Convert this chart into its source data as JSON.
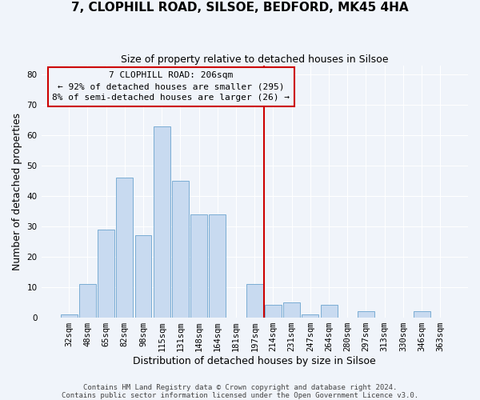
{
  "title": "7, CLOPHILL ROAD, SILSOE, BEDFORD, MK45 4HA",
  "subtitle": "Size of property relative to detached houses in Silsoe",
  "xlabel": "Distribution of detached houses by size in Silsoe",
  "ylabel": "Number of detached properties",
  "categories": [
    "32sqm",
    "48sqm",
    "65sqm",
    "82sqm",
    "98sqm",
    "115sqm",
    "131sqm",
    "148sqm",
    "164sqm",
    "181sqm",
    "197sqm",
    "214sqm",
    "231sqm",
    "247sqm",
    "264sqm",
    "280sqm",
    "297sqm",
    "313sqm",
    "330sqm",
    "346sqm",
    "363sqm"
  ],
  "values": [
    1,
    11,
    29,
    46,
    27,
    63,
    45,
    34,
    34,
    0,
    11,
    4,
    5,
    1,
    4,
    0,
    2,
    0,
    0,
    2,
    0
  ],
  "bar_color": "#c8daf0",
  "bar_edge_color": "#7aadd4",
  "vline_x": 10.5,
  "vline_color": "#cc0000",
  "annotation_title": "7 CLOPHILL ROAD: 206sqm",
  "annotation_line1": "← 92% of detached houses are smaller (295)",
  "annotation_line2": "8% of semi-detached houses are larger (26) →",
  "annotation_box_color": "#cc0000",
  "ylim": [
    0,
    83
  ],
  "yticks": [
    0,
    10,
    20,
    30,
    40,
    50,
    60,
    70,
    80
  ],
  "footer1": "Contains HM Land Registry data © Crown copyright and database right 2024.",
  "footer2": "Contains public sector information licensed under the Open Government Licence v3.0.",
  "background_color": "#f0f4fa",
  "grid_color": "#ffffff",
  "title_fontsize": 11,
  "subtitle_fontsize": 9,
  "axis_label_fontsize": 9,
  "tick_fontsize": 7.5,
  "annotation_fontsize": 8,
  "footer_fontsize": 6.5
}
